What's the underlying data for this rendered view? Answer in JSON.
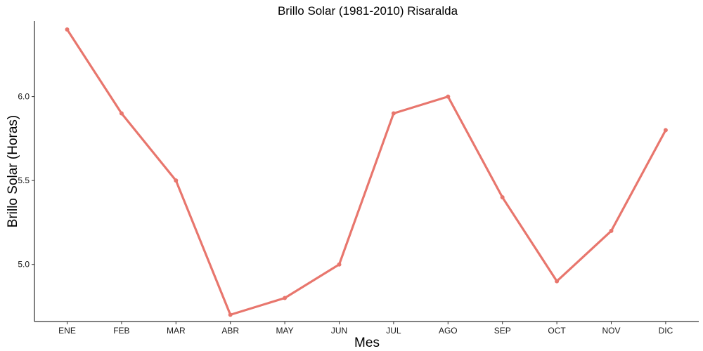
{
  "chart_data": {
    "type": "line",
    "title": "Brillo Solar (1981-2010)  Risaralda",
    "xlabel": "Mes",
    "ylabel": "Brillo Solar (Horas)",
    "categories": [
      "ENE",
      "FEB",
      "MAR",
      "ABR",
      "MAY",
      "JUN",
      "JUL",
      "AGO",
      "SEP",
      "OCT",
      "NOV",
      "DIC"
    ],
    "series": [
      {
        "values": [
          6.4,
          5.9,
          5.5,
          4.7,
          4.8,
          5.0,
          5.9,
          6.0,
          5.4,
          4.9,
          5.2,
          5.8
        ],
        "color": "#E8766D"
      }
    ],
    "yticks": [
      5.0,
      5.5,
      6.0
    ],
    "ytick_labels": [
      "5.0",
      "5.5",
      "6.0"
    ],
    "ylim": [
      4.66,
      6.45
    ],
    "grid": false,
    "legend": "none"
  }
}
